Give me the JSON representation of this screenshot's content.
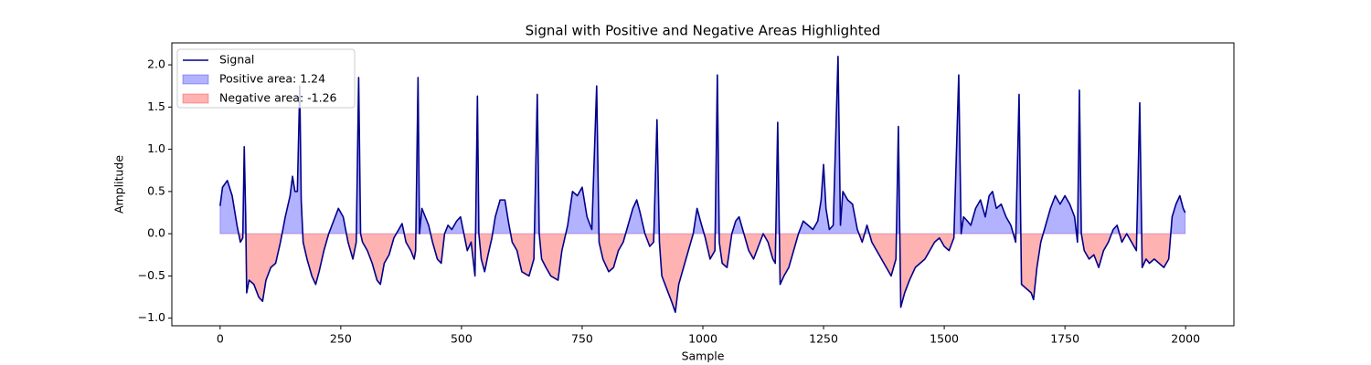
{
  "chart_data": {
    "type": "area-line",
    "title": "Signal with Positive and Negative Areas Highlighted",
    "x_label": "Sample",
    "y_label": "Amplitude",
    "x": [
      0,
      5,
      15,
      25,
      35,
      42,
      47,
      50,
      53,
      55,
      60,
      70,
      80,
      88,
      95,
      105,
      115,
      125,
      135,
      145,
      150,
      155,
      160,
      165,
      168,
      172,
      180,
      190,
      198,
      205,
      215,
      225,
      235,
      245,
      255,
      265,
      275,
      282,
      287,
      291,
      295,
      305,
      315,
      325,
      332,
      340,
      350,
      360,
      370,
      377,
      385,
      395,
      402,
      405,
      410,
      413,
      418,
      425,
      432,
      440,
      450,
      458,
      465,
      472,
      480,
      490,
      498,
      505,
      512,
      520,
      528,
      533,
      536,
      541,
      548,
      555,
      563,
      570,
      580,
      590,
      597,
      605,
      615,
      625,
      640,
      650,
      657,
      661,
      666,
      675,
      685,
      700,
      708,
      720,
      730,
      740,
      750,
      760,
      770,
      780,
      785,
      793,
      805,
      815,
      825,
      835,
      845,
      855,
      863,
      870,
      880,
      890,
      898,
      905,
      910,
      915,
      925,
      935,
      943,
      950,
      960,
      970,
      980,
      988,
      995,
      1005,
      1015,
      1025,
      1030,
      1034,
      1040,
      1050,
      1060,
      1068,
      1075,
      1085,
      1095,
      1105,
      1115,
      1125,
      1135,
      1145,
      1150,
      1155,
      1160,
      1168,
      1178,
      1188,
      1198,
      1208,
      1218,
      1228,
      1238,
      1245,
      1250,
      1255,
      1262,
      1270,
      1280,
      1285,
      1290,
      1300,
      1310,
      1320,
      1330,
      1340,
      1350,
      1360,
      1370,
      1380,
      1390,
      1400,
      1405,
      1410,
      1418,
      1428,
      1440,
      1450,
      1460,
      1470,
      1480,
      1490,
      1500,
      1510,
      1520,
      1530,
      1535,
      1540,
      1548,
      1555,
      1565,
      1575,
      1585,
      1593,
      1600,
      1608,
      1618,
      1628,
      1638,
      1648,
      1655,
      1660,
      1670,
      1680,
      1685,
      1692,
      1700,
      1710,
      1720,
      1730,
      1740,
      1750,
      1760,
      1770,
      1776,
      1780,
      1784,
      1790,
      1800,
      1810,
      1820,
      1830,
      1840,
      1850,
      1858,
      1868,
      1878,
      1888,
      1898,
      1905,
      1910,
      1918,
      1925,
      1935,
      1945,
      1955,
      1965,
      1972,
      1980,
      1988,
      1995,
      1999
    ],
    "series": [
      {
        "name": "Signal",
        "color": "#00008b",
        "values": [
          0.33,
          0.55,
          0.63,
          0.45,
          0.1,
          -0.1,
          -0.05,
          1.03,
          0.2,
          -0.7,
          -0.55,
          -0.6,
          -0.75,
          -0.8,
          -0.55,
          -0.4,
          -0.35,
          -0.1,
          0.2,
          0.45,
          0.68,
          0.5,
          0.5,
          1.75,
          0.4,
          -0.1,
          -0.3,
          -0.5,
          -0.6,
          -0.45,
          -0.2,
          0.0,
          0.15,
          0.3,
          0.2,
          -0.1,
          -0.3,
          -0.1,
          1.85,
          0.0,
          -0.1,
          -0.2,
          -0.35,
          -0.55,
          -0.6,
          -0.35,
          -0.25,
          -0.05,
          0.05,
          0.12,
          -0.1,
          -0.2,
          -0.3,
          -0.2,
          1.85,
          0.0,
          0.3,
          0.2,
          0.1,
          -0.1,
          -0.3,
          -0.35,
          0.0,
          0.1,
          0.05,
          0.15,
          0.2,
          0.0,
          -0.2,
          -0.1,
          -0.5,
          1.63,
          0.0,
          -0.3,
          -0.45,
          -0.25,
          -0.05,
          0.2,
          0.4,
          0.4,
          0.15,
          -0.1,
          -0.2,
          -0.45,
          -0.5,
          -0.3,
          1.65,
          0.0,
          -0.3,
          -0.4,
          -0.5,
          -0.55,
          -0.2,
          0.1,
          0.5,
          0.45,
          0.55,
          0.2,
          0.05,
          1.75,
          -0.1,
          -0.3,
          -0.45,
          -0.4,
          -0.2,
          -0.1,
          0.1,
          0.3,
          0.4,
          0.25,
          0.0,
          -0.15,
          -0.1,
          1.35,
          -0.1,
          -0.5,
          -0.65,
          -0.8,
          -0.93,
          -0.6,
          -0.4,
          -0.2,
          0.0,
          0.3,
          0.15,
          -0.05,
          -0.3,
          -0.2,
          1.88,
          -0.1,
          -0.35,
          -0.4,
          0.0,
          0.15,
          0.2,
          0.0,
          -0.2,
          -0.3,
          -0.15,
          0.0,
          -0.1,
          -0.3,
          -0.35,
          1.32,
          -0.6,
          -0.5,
          -0.4,
          -0.2,
          0.0,
          0.15,
          0.1,
          0.05,
          0.15,
          0.4,
          0.82,
          0.3,
          0.05,
          0.1,
          2.1,
          0.1,
          0.5,
          0.4,
          0.35,
          0.05,
          -0.1,
          0.1,
          -0.1,
          -0.2,
          -0.3,
          -0.4,
          -0.5,
          -0.3,
          1.27,
          -0.87,
          -0.7,
          -0.55,
          -0.4,
          -0.35,
          -0.3,
          -0.2,
          -0.1,
          -0.05,
          -0.15,
          -0.2,
          -0.05,
          1.88,
          0.0,
          0.2,
          0.15,
          0.1,
          0.3,
          0.4,
          0.2,
          0.45,
          0.5,
          0.3,
          0.35,
          0.2,
          0.1,
          -0.1,
          1.65,
          -0.6,
          -0.65,
          -0.7,
          -0.78,
          -0.4,
          -0.1,
          0.1,
          0.3,
          0.45,
          0.35,
          0.45,
          0.35,
          0.2,
          -0.1,
          1.7,
          0.0,
          -0.2,
          -0.3,
          -0.25,
          -0.4,
          -0.2,
          -0.1,
          0.05,
          0.1,
          -0.1,
          0.0,
          -0.1,
          -0.2,
          1.55,
          -0.4,
          -0.3,
          -0.35,
          -0.3,
          -0.35,
          -0.4,
          -0.3,
          0.2,
          0.35,
          0.45,
          0.3,
          0.25
        ]
      }
    ],
    "fills": [
      {
        "name": "Positive area: 1.24",
        "color": "#0000ff",
        "where": "positive"
      },
      {
        "name": "Negative area: -1.26",
        "color": "#ff0000",
        "where": "negative"
      }
    ],
    "xlim": [
      -100,
      2100
    ],
    "ylim": [
      -1.09,
      2.26
    ],
    "xticks": [
      0,
      250,
      500,
      750,
      1000,
      1250,
      1500,
      1750,
      2000
    ],
    "yticks": [
      {
        "value": -1.0,
        "label": "−1.0"
      },
      {
        "value": -0.5,
        "label": "−0.5"
      },
      {
        "value": 0,
        "label": "0.0"
      },
      {
        "value": 0.5,
        "label": "0.5"
      },
      {
        "value": 1.0,
        "label": "1.0"
      },
      {
        "value": 1.5,
        "label": "1.5"
      },
      {
        "value": 2.0,
        "label": "2.0"
      }
    ],
    "legend": "upper left"
  }
}
